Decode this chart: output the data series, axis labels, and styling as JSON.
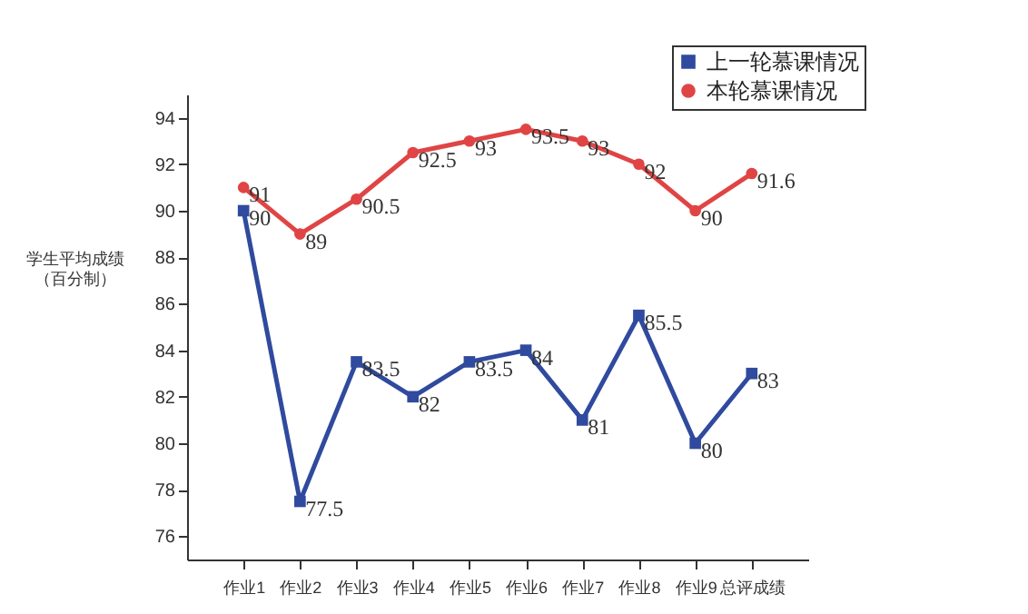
{
  "chart_data": {
    "type": "line",
    "ylabel": "学生平均成绩（百分制）",
    "categories": [
      "作业1",
      "作业2",
      "作业3",
      "作业4",
      "作业5",
      "作业6",
      "作业7",
      "作业8",
      "作业9",
      "总评成绩"
    ],
    "series": [
      {
        "name": "上一轮慕课情况",
        "color": "#2f4a9e",
        "marker": "square",
        "values": [
          90,
          77.5,
          83.5,
          82,
          83.5,
          84,
          81,
          85.5,
          80,
          83
        ]
      },
      {
        "name": "本轮慕课情况",
        "color": "#e04444",
        "marker": "circle",
        "values": [
          91,
          89,
          90.5,
          92.5,
          93,
          93.5,
          93,
          92,
          90,
          91.6
        ]
      }
    ],
    "ylim": [
      75,
      95
    ],
    "yticks": [
      76,
      78,
      80,
      82,
      84,
      86,
      88,
      90,
      92,
      94
    ],
    "grid": false,
    "legend": "top right",
    "data_labels": true
  }
}
